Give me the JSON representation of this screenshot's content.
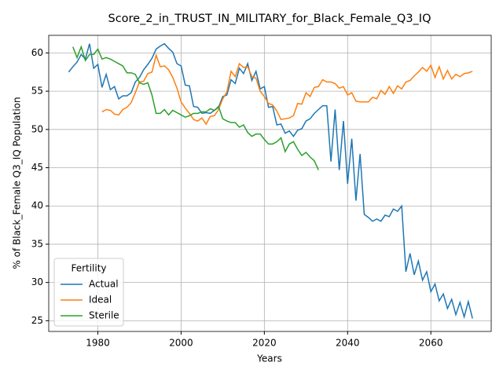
{
  "chart_data": {
    "type": "line",
    "title": "Score_2_in_TRUST_IN_MILITARY_for_Black_Female_Q3_IQ",
    "xlabel": "Years",
    "ylabel": "% of Black_Female Q3_IQ Population",
    "x": [
      1973,
      1974,
      1975,
      1976,
      1977,
      1978,
      1979,
      1980,
      1981,
      1982,
      1983,
      1984,
      1985,
      1986,
      1987,
      1988,
      1989,
      1990,
      1991,
      1992,
      1993,
      1994,
      1995,
      1996,
      1997,
      1998,
      1999,
      2000,
      2001,
      2002,
      2003,
      2004,
      2005,
      2006,
      2007,
      2008,
      2009,
      2010,
      2011,
      2012,
      2013,
      2014,
      2015,
      2016,
      2017,
      2018,
      2019,
      2020,
      2021,
      2022,
      2023,
      2024,
      2025,
      2026,
      2027,
      2028,
      2029,
      2030,
      2031,
      2032,
      2033,
      2034,
      2035,
      2036,
      2037,
      2038,
      2039,
      2040,
      2041,
      2042,
      2043,
      2044,
      2045,
      2046,
      2047,
      2048,
      2049,
      2050,
      2051,
      2052,
      2053,
      2054,
      2055,
      2056,
      2057,
      2058,
      2059,
      2060,
      2061,
      2062,
      2063,
      2064,
      2065,
      2066,
      2067,
      2068,
      2069,
      2070
    ],
    "series": [
      {
        "name": "Actual",
        "color": "#1f77b4",
        "values": [
          57.5,
          58.2,
          58.8,
          59.8,
          59.2,
          61.2,
          58.0,
          58.5,
          55.5,
          57.2,
          55.2,
          55.6,
          54.0,
          54.4,
          54.4,
          54.8,
          56.2,
          56.8,
          57.8,
          58.5,
          59.3,
          60.5,
          60.9,
          61.2,
          60.6,
          60.1,
          58.6,
          58.3,
          55.8,
          55.7,
          53.0,
          52.9,
          52.1,
          52.2,
          52.1,
          52.5,
          52.9,
          54.3,
          54.5,
          56.5,
          56.0,
          58.0,
          57.3,
          58.6,
          56.4,
          57.6,
          55.3,
          55.6,
          52.9,
          53.0,
          50.6,
          50.7,
          49.5,
          49.8,
          49.1,
          49.9,
          50.1,
          51.1,
          51.4,
          52.1,
          52.6,
          53.1,
          53.1,
          45.8,
          52.6,
          44.7,
          51.1,
          42.9,
          48.8,
          40.7,
          46.8,
          38.9,
          38.5,
          38.0,
          38.3,
          38.0,
          38.8,
          38.6,
          39.6,
          39.3,
          40.0,
          31.4,
          33.8,
          31.0,
          32.8,
          30.3,
          31.4,
          28.8,
          29.8,
          27.6,
          28.5,
          26.6,
          27.8,
          25.8,
          27.4,
          25.5,
          27.5,
          25.3
        ]
      },
      {
        "name": "Ideal",
        "color": "#ff7f0e",
        "values": [
          null,
          null,
          null,
          null,
          null,
          null,
          null,
          null,
          52.3,
          52.6,
          52.5,
          52.0,
          51.9,
          52.6,
          52.9,
          53.5,
          54.8,
          56.2,
          56.3,
          57.3,
          57.5,
          59.7,
          58.2,
          58.3,
          57.8,
          56.8,
          55.4,
          53.6,
          52.8,
          52.1,
          51.3,
          51.1,
          51.5,
          50.7,
          51.7,
          51.8,
          52.6,
          54.0,
          54.9,
          57.6,
          56.9,
          58.6,
          58.1,
          58.2,
          56.9,
          56.7,
          55.0,
          54.3,
          53.4,
          53.2,
          52.4,
          51.3,
          51.4,
          51.5,
          51.8,
          53.4,
          53.3,
          54.8,
          54.3,
          55.5,
          55.6,
          56.5,
          56.2,
          56.2,
          56.0,
          55.4,
          55.6,
          54.5,
          54.8,
          53.7,
          53.6,
          53.6,
          53.6,
          54.2,
          54.0,
          55.1,
          54.6,
          55.6,
          54.7,
          55.7,
          55.3,
          56.2,
          56.4,
          57.0,
          57.5,
          58.1,
          57.6,
          58.4,
          56.8,
          58.2,
          56.6,
          57.7,
          56.6,
          57.2,
          56.9,
          57.3,
          57.4,
          57.6
        ]
      },
      {
        "name": "Sterile",
        "color": "#2ca02c",
        "values": [
          null,
          60.8,
          59.4,
          60.8,
          59.0,
          59.8,
          59.8,
          60.5,
          59.2,
          59.4,
          59.2,
          58.9,
          58.6,
          58.3,
          57.4,
          57.4,
          57.2,
          56.1,
          55.9,
          56.1,
          54.5,
          52.1,
          52.1,
          52.6,
          51.9,
          52.5,
          52.2,
          51.9,
          51.6,
          51.8,
          52.1,
          52.1,
          52.3,
          52.3,
          52.7,
          52.5,
          53.0,
          51.4,
          51.1,
          50.9,
          50.9,
          50.3,
          50.6,
          49.6,
          49.1,
          49.4,
          49.4,
          48.7,
          48.1,
          48.1,
          48.4,
          48.9,
          47.1,
          48.1,
          48.4,
          47.4,
          46.6,
          47.0,
          46.4,
          45.9,
          44.7,
          null,
          null,
          null,
          null,
          null,
          null,
          null,
          null,
          null,
          null,
          null,
          null,
          null,
          null,
          null,
          null,
          null,
          null,
          null,
          null,
          null,
          null,
          null,
          null,
          null,
          null,
          null,
          null,
          null,
          null,
          null,
          null,
          null,
          null,
          null,
          null,
          null
        ]
      }
    ],
    "xlim": [
      1968.2,
      2074.5
    ],
    "ylim": [
      23.6,
      62.3
    ],
    "xticks": [
      1980,
      2000,
      2020,
      2040,
      2060
    ],
    "yticks": [
      25,
      30,
      35,
      40,
      45,
      50,
      55,
      60
    ],
    "grid": true,
    "legend_title": "Fertility",
    "legend_loc": "lower left"
  }
}
